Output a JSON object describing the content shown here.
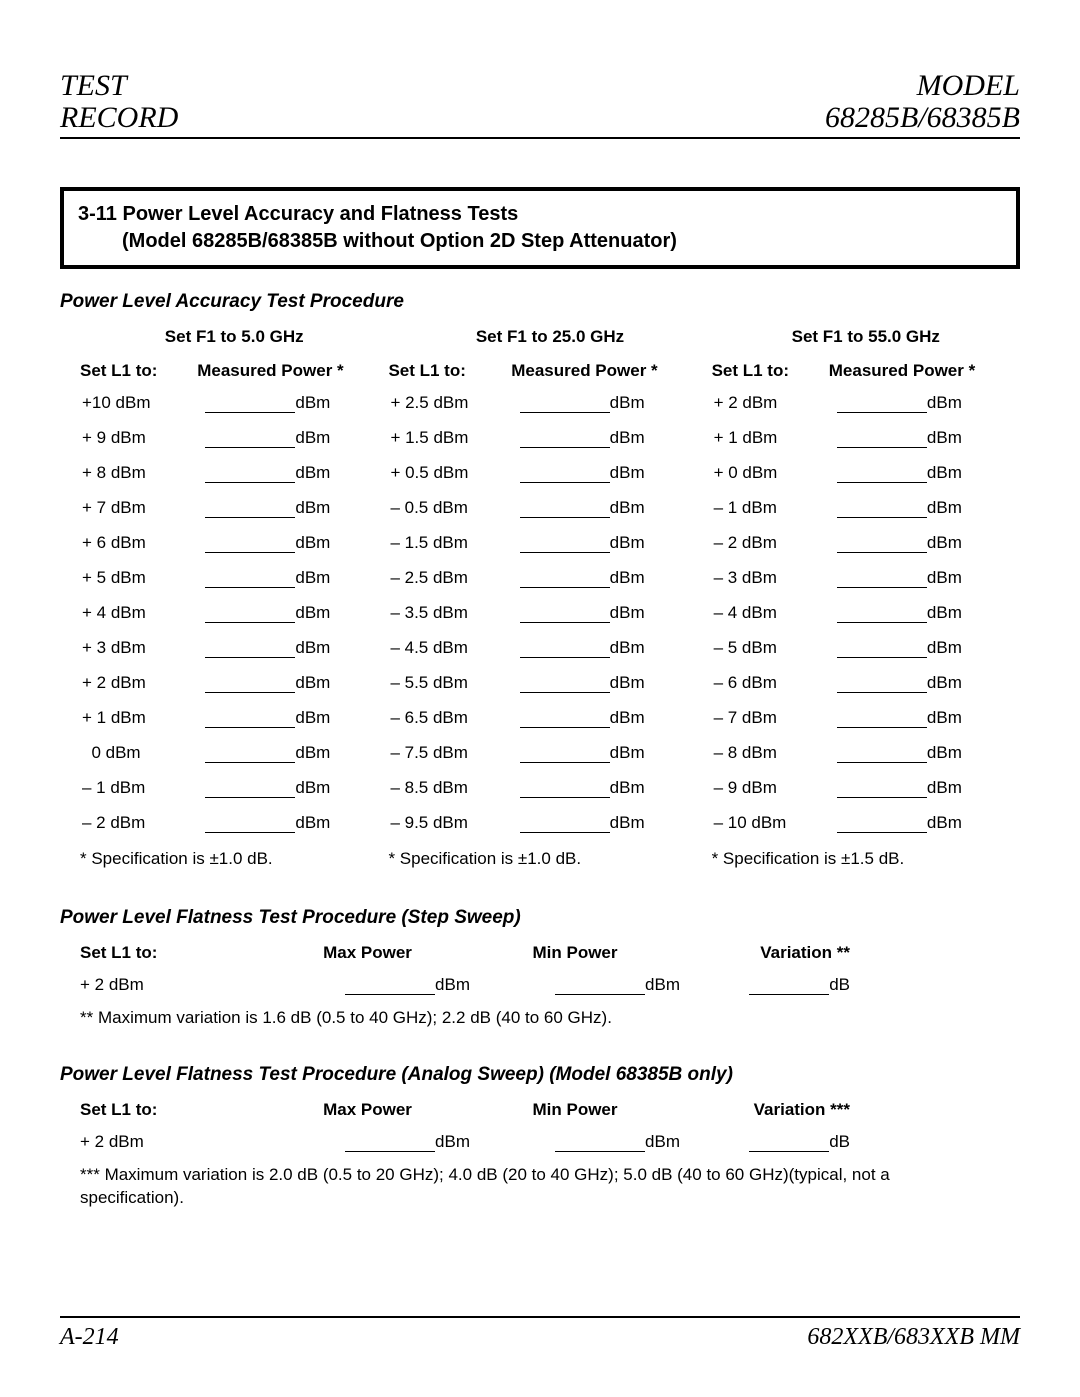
{
  "header": {
    "left_line1": "TEST",
    "left_line2": "RECORD",
    "right_line1": "MODEL",
    "right_line2": "68285B/68385B"
  },
  "section_bar": {
    "number": "3-11",
    "title": "Power Level Accuracy and Flatness Tests",
    "subtitle": "(Model 68285B/68385B without Option 2D Step Attenuator)"
  },
  "proc_accuracy": {
    "title": "Power Level Accuracy Test Procedure",
    "sub_left_label": "Set L1 to:",
    "sub_right_label": "Measured Power *",
    "unit": "dBm",
    "columns": [
      {
        "group_header": "Set F1 to 5.0 GHz",
        "rows": [
          "+10 dBm",
          "+ 9 dBm",
          "+ 8 dBm",
          "+ 7 dBm",
          "+ 6 dBm",
          "+ 5 dBm",
          "+ 4 dBm",
          "+ 3 dBm",
          "+ 2 dBm",
          "+ 1 dBm",
          "  0 dBm",
          "– 1 dBm",
          "– 2 dBm"
        ],
        "spec": "* Specification is ±1.0 dB."
      },
      {
        "group_header": "Set F1 to 25.0 GHz",
        "rows": [
          "+ 2.5 dBm",
          "+ 1.5 dBm",
          "+ 0.5 dBm",
          "– 0.5 dBm",
          "– 1.5 dBm",
          "– 2.5 dBm",
          "– 3.5 dBm",
          "– 4.5 dBm",
          "– 5.5 dBm",
          "– 6.5 dBm",
          "– 7.5 dBm",
          "– 8.5 dBm",
          "– 9.5 dBm"
        ],
        "spec": "* Specification is ±1.0 dB."
      },
      {
        "group_header": "Set F1 to 55.0 GHz",
        "rows": [
          "+ 2 dBm",
          "+ 1 dBm",
          "+ 0 dBm",
          "– 1 dBm",
          "– 2 dBm",
          "– 3 dBm",
          "– 4 dBm",
          "– 5 dBm",
          "– 6 dBm",
          "– 7 dBm",
          "– 8 dBm",
          "– 9 dBm",
          "– 10 dBm"
        ],
        "spec": "* Specification is ±1.5 dB."
      }
    ]
  },
  "proc_flat_step": {
    "title": "Power Level Flatness Test Procedure (Step Sweep)",
    "headers": [
      "Set L1 to:",
      "Max Power",
      "Min Power",
      "Variation **"
    ],
    "row": {
      "l1": "+ 2 dBm",
      "u1": "dBm",
      "u2": "dBm",
      "u3": "dB"
    },
    "note": "** Maximum variation is 1.6 dB (0.5 to 40 GHz); 2.2 dB (40 to 60 GHz)."
  },
  "proc_flat_analog": {
    "title": "Power Level Flatness Test Procedure (Analog Sweep) (Model 68385B only)",
    "headers": [
      "Set L1 to:",
      "Max Power",
      "Min Power",
      "Variation ***"
    ],
    "row": {
      "l1": "+ 2 dBm",
      "u1": "dBm",
      "u2": "dBm",
      "u3": "dB"
    },
    "note": "*** Maximum variation is 2.0 dB (0.5 to 20 GHz); 4.0 dB (20 to 40 GHz); 5.0 dB (40 to 60 GHz)(typical, not a specification)."
  },
  "footer": {
    "left": "A-214",
    "right": "682XXB/683XXB MM"
  }
}
